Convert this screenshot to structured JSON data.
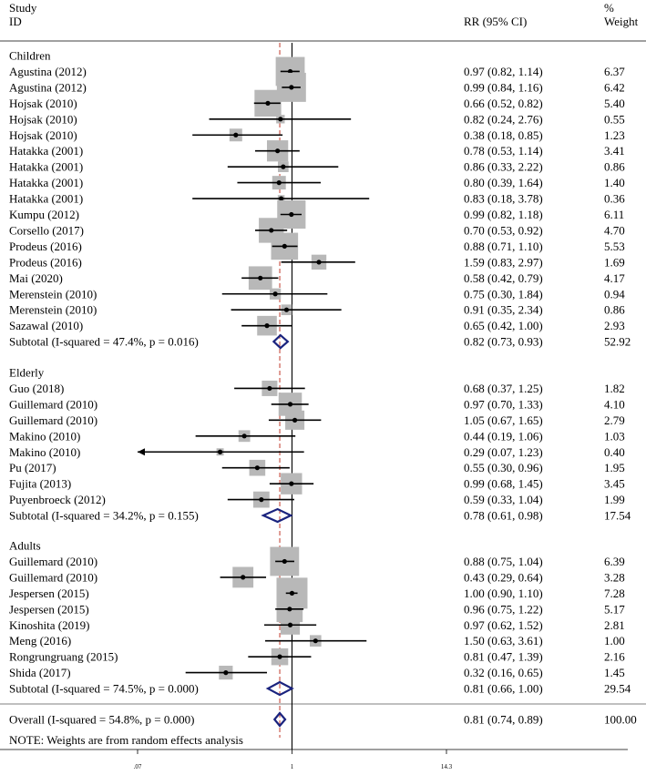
{
  "chart_data": {
    "type": "forest",
    "header": {
      "study_line1": "Study",
      "study_line2": "ID",
      "ci_label": "RR (95% CI)",
      "weight_line1": "%",
      "weight_line2": "Weight"
    },
    "x_scale": "log",
    "xlim": [
      0.07,
      14.3
    ],
    "x_ticks": [
      ".07",
      "1",
      "14.3"
    ],
    "null_line": 1,
    "overall_line": 0.81,
    "colors": {
      "box": "#b8b8b8",
      "diamond": "#1a237e",
      "overall_line": "#c0392b",
      "line": "#000000"
    },
    "groups": [
      {
        "name": "Children",
        "studies": [
          {
            "id": "Agustina (2012)",
            "rr": 0.97,
            "lo": 0.82,
            "hi": 1.14,
            "ci": "0.97 (0.82, 1.14)",
            "weight": "6.37"
          },
          {
            "id": "Agustina (2012)",
            "rr": 0.99,
            "lo": 0.84,
            "hi": 1.16,
            "ci": "0.99 (0.84, 1.16)",
            "weight": "6.42"
          },
          {
            "id": "Hojsak (2010)",
            "rr": 0.66,
            "lo": 0.52,
            "hi": 0.82,
            "ci": "0.66 (0.52, 0.82)",
            "weight": "5.40"
          },
          {
            "id": "Hojsak (2010)",
            "rr": 0.82,
            "lo": 0.24,
            "hi": 2.76,
            "ci": "0.82 (0.24, 2.76)",
            "weight": "0.55"
          },
          {
            "id": "Hojsak (2010)",
            "rr": 0.38,
            "lo": 0.18,
            "hi": 0.85,
            "ci": "0.38 (0.18, 0.85)",
            "weight": "1.23"
          },
          {
            "id": "Hatakka (2001)",
            "rr": 0.78,
            "lo": 0.53,
            "hi": 1.14,
            "ci": "0.78 (0.53, 1.14)",
            "weight": "3.41"
          },
          {
            "id": "Hatakka (2001)",
            "rr": 0.86,
            "lo": 0.33,
            "hi": 2.22,
            "ci": "0.86 (0.33, 2.22)",
            "weight": "0.86"
          },
          {
            "id": "Hatakka (2001)",
            "rr": 0.8,
            "lo": 0.39,
            "hi": 1.64,
            "ci": "0.80 (0.39, 1.64)",
            "weight": "1.40"
          },
          {
            "id": "Hatakka (2001)",
            "rr": 0.83,
            "lo": 0.18,
            "hi": 3.78,
            "ci": "0.83 (0.18, 3.78)",
            "weight": "0.36"
          },
          {
            "id": "Kumpu (2012)",
            "rr": 0.99,
            "lo": 0.82,
            "hi": 1.18,
            "ci": "0.99 (0.82, 1.18)",
            "weight": "6.11"
          },
          {
            "id": "Corsello (2017)",
            "rr": 0.7,
            "lo": 0.53,
            "hi": 0.92,
            "ci": "0.70 (0.53, 0.92)",
            "weight": "4.70"
          },
          {
            "id": "Prodeus (2016)",
            "rr": 0.88,
            "lo": 0.71,
            "hi": 1.1,
            "ci": "0.88 (0.71, 1.10)",
            "weight": "5.53"
          },
          {
            "id": "Prodeus (2016)",
            "rr": 1.59,
            "lo": 0.83,
            "hi": 2.97,
            "ci": "1.59 (0.83, 2.97)",
            "weight": "1.69"
          },
          {
            "id": "Mai (2020)",
            "rr": 0.58,
            "lo": 0.42,
            "hi": 0.79,
            "ci": "0.58 (0.42, 0.79)",
            "weight": "4.17"
          },
          {
            "id": "Merenstein (2010)",
            "rr": 0.75,
            "lo": 0.3,
            "hi": 1.84,
            "ci": "0.75 (0.30, 1.84)",
            "weight": "0.94"
          },
          {
            "id": "Merenstein (2010)",
            "rr": 0.91,
            "lo": 0.35,
            "hi": 2.34,
            "ci": "0.91 (0.35, 2.34)",
            "weight": "0.86"
          },
          {
            "id": "Sazawal (2010)",
            "rr": 0.65,
            "lo": 0.42,
            "hi": 1.0,
            "ci": "0.65 (0.42, 1.00)",
            "weight": "2.93"
          }
        ],
        "subtotal": {
          "label": "Subtotal  (I-squared = 47.4%, p = 0.016)",
          "rr": 0.82,
          "lo": 0.73,
          "hi": 0.93,
          "ci": "0.82 (0.73, 0.93)",
          "weight": "52.92"
        }
      },
      {
        "name": "Elderly",
        "studies": [
          {
            "id": "Guo (2018)",
            "rr": 0.68,
            "lo": 0.37,
            "hi": 1.25,
            "ci": "0.68 (0.37, 1.25)",
            "weight": "1.82"
          },
          {
            "id": "Guillemard (2010)",
            "rr": 0.97,
            "lo": 0.7,
            "hi": 1.33,
            "ci": "0.97 (0.70, 1.33)",
            "weight": "4.10"
          },
          {
            "id": "Guillemard (2010)",
            "rr": 1.05,
            "lo": 0.67,
            "hi": 1.65,
            "ci": "1.05 (0.67, 1.65)",
            "weight": "2.79"
          },
          {
            "id": "Makino (2010)",
            "rr": 0.44,
            "lo": 0.19,
            "hi": 1.06,
            "ci": "0.44 (0.19, 1.06)",
            "weight": "1.03"
          },
          {
            "id": "Makino (2010)",
            "rr": 0.29,
            "lo": 0.07,
            "hi": 1.23,
            "ci": "0.29 (0.07, 1.23)",
            "weight": "0.40",
            "arrow_left": true
          },
          {
            "id": "Pu (2017)",
            "rr": 0.55,
            "lo": 0.3,
            "hi": 0.96,
            "ci": "0.55 (0.30, 0.96)",
            "weight": "1.95"
          },
          {
            "id": "Fujita (2013)",
            "rr": 0.99,
            "lo": 0.68,
            "hi": 1.45,
            "ci": "0.99 (0.68, 1.45)",
            "weight": "3.45"
          },
          {
            "id": "Puyenbroeck (2012)",
            "rr": 0.59,
            "lo": 0.33,
            "hi": 1.04,
            "ci": "0.59 (0.33, 1.04)",
            "weight": "1.99"
          }
        ],
        "subtotal": {
          "label": "Subtotal  (I-squared = 34.2%, p = 0.155)",
          "rr": 0.78,
          "lo": 0.61,
          "hi": 0.98,
          "ci": "0.78 (0.61, 0.98)",
          "weight": "17.54"
        }
      },
      {
        "name": "Adults",
        "studies": [
          {
            "id": "Guillemard (2010)",
            "rr": 0.88,
            "lo": 0.75,
            "hi": 1.04,
            "ci": "0.88 (0.75, 1.04)",
            "weight": "6.39"
          },
          {
            "id": "Guillemard (2010)",
            "rr": 0.43,
            "lo": 0.29,
            "hi": 0.64,
            "ci": "0.43 (0.29, 0.64)",
            "weight": "3.28"
          },
          {
            "id": "Jespersen (2015)",
            "rr": 1.0,
            "lo": 0.9,
            "hi": 1.1,
            "ci": "1.00 (0.90, 1.10)",
            "weight": "7.28"
          },
          {
            "id": "Jespersen (2015)",
            "rr": 0.96,
            "lo": 0.75,
            "hi": 1.22,
            "ci": "0.96 (0.75, 1.22)",
            "weight": "5.17"
          },
          {
            "id": "Kinoshita (2019)",
            "rr": 0.97,
            "lo": 0.62,
            "hi": 1.52,
            "ci": "0.97 (0.62, 1.52)",
            "weight": "2.81"
          },
          {
            "id": "Meng (2016)",
            "rr": 1.5,
            "lo": 0.63,
            "hi": 3.61,
            "ci": "1.50 (0.63, 3.61)",
            "weight": "1.00"
          },
          {
            "id": "Rongrungruang (2015)",
            "rr": 0.81,
            "lo": 0.47,
            "hi": 1.39,
            "ci": "0.81 (0.47, 1.39)",
            "weight": "2.16"
          },
          {
            "id": "Shida (2017)",
            "rr": 0.32,
            "lo": 0.16,
            "hi": 0.65,
            "ci": "0.32 (0.16, 0.65)",
            "weight": "1.45"
          }
        ],
        "subtotal": {
          "label": "Subtotal  (I-squared = 74.5%, p = 0.000)",
          "rr": 0.81,
          "lo": 0.66,
          "hi": 1.0,
          "ci": "0.81 (0.66, 1.00)",
          "weight": "29.54"
        }
      }
    ],
    "overall": {
      "label": "Overall  (I-squared = 54.8%, p = 0.000)",
      "rr": 0.81,
      "lo": 0.74,
      "hi": 0.89,
      "ci": "0.81 (0.74, 0.89)",
      "weight": "100.00"
    },
    "note": "NOTE: Weights are from random effects analysis"
  }
}
